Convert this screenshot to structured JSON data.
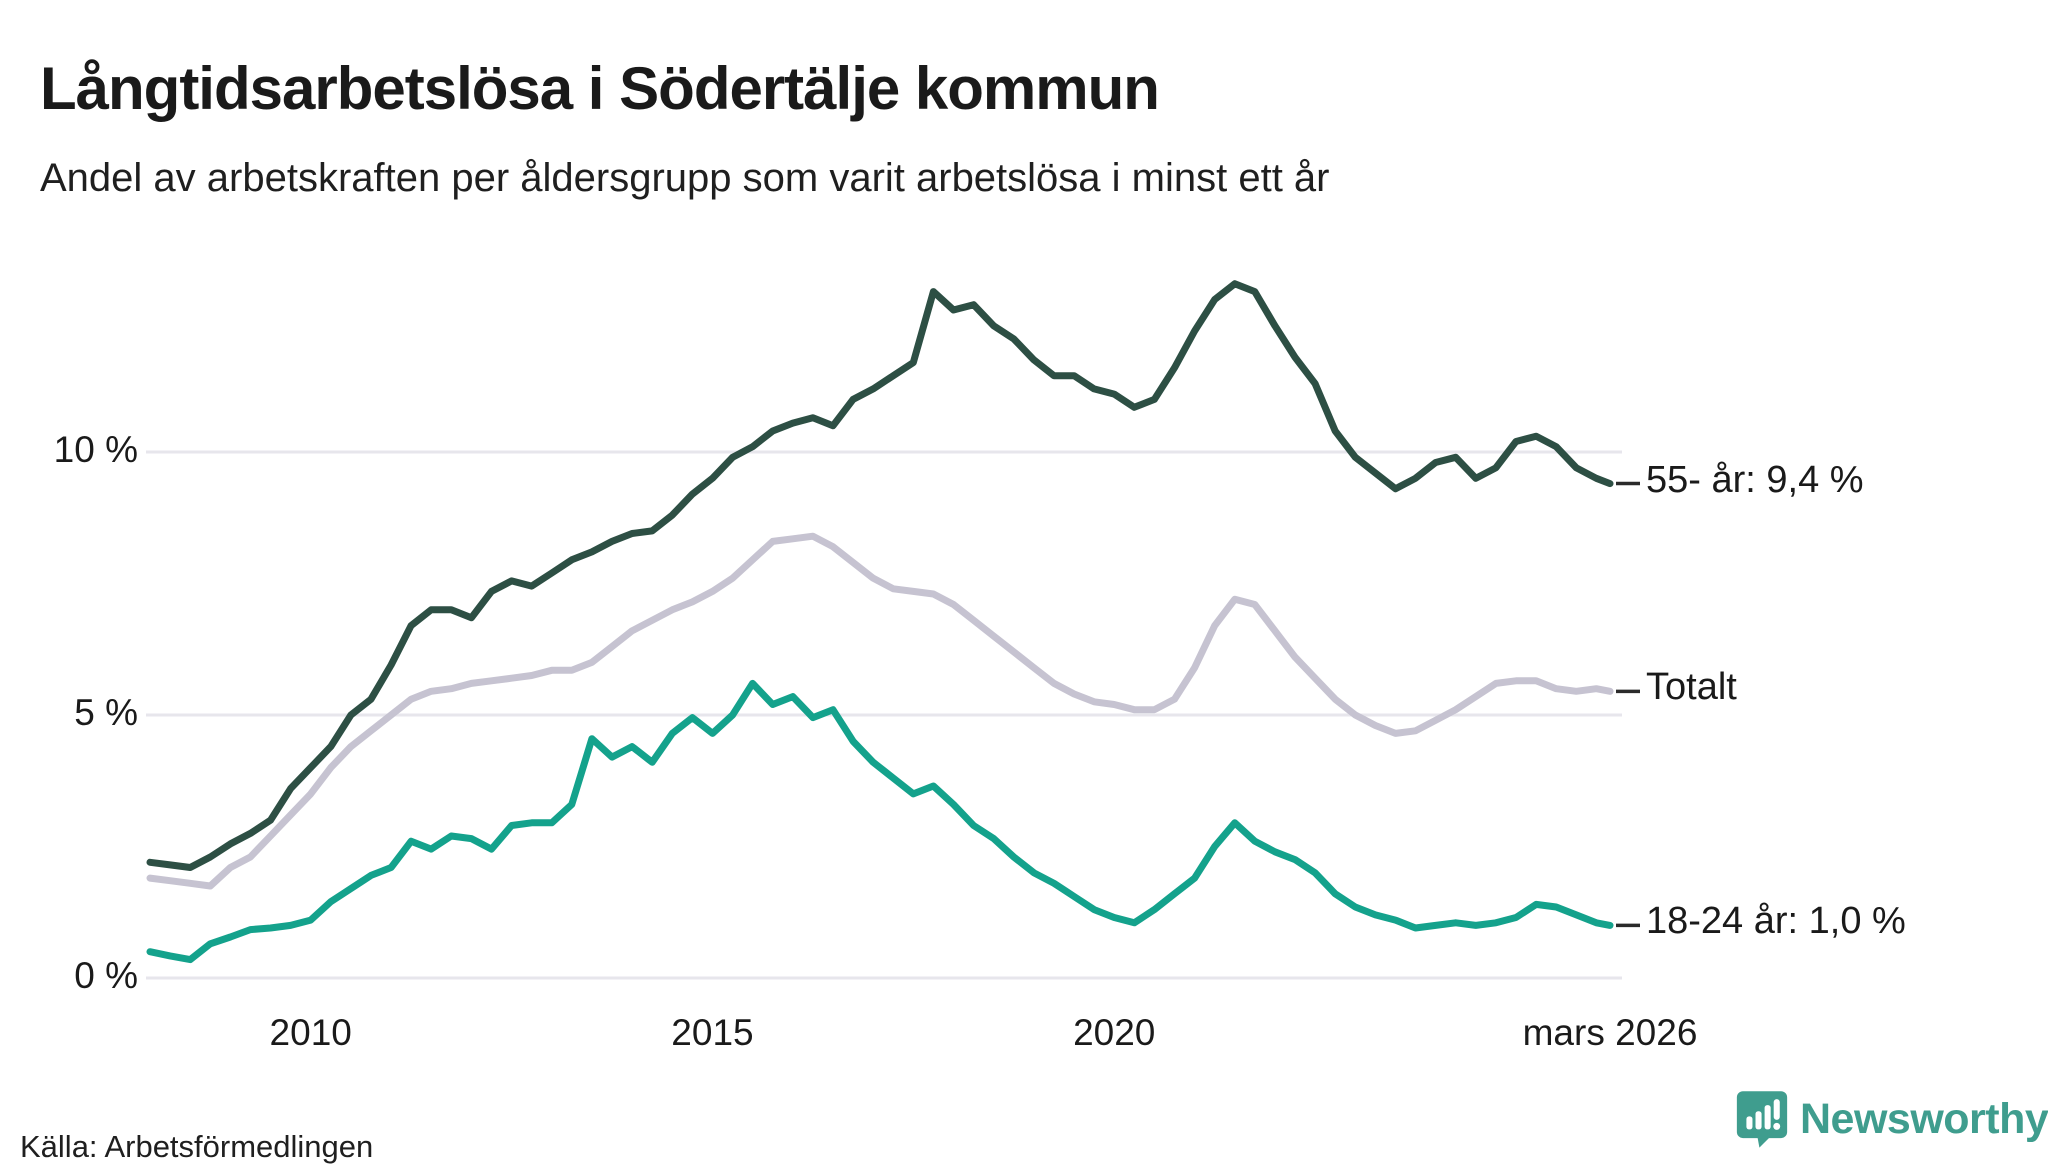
{
  "header": {
    "title": "Långtidsarbetslösa i Södertälje kommun",
    "subtitle": "Andel av arbetskraften per åldersgrupp som varit arbetslösa i minst ett år"
  },
  "footer": {
    "source": "Källa: Arbetsförmedlingen",
    "brand": "Newsworthy"
  },
  "colors": {
    "text": "#1a1a1a",
    "grid": "#e7e6ec",
    "label_dash": "#2b2b2b",
    "series_55": "#2d4f44",
    "series_total": "#c6c3d1",
    "series_1824": "#14a28c",
    "brand_teal": "#3f9d8e"
  },
  "chart_data": {
    "type": "line",
    "title": "Långtidsarbetslösa i Södertälje kommun",
    "subtitle": "Andel av arbetskraften per åldersgrupp som varit arbetslösa i minst ett år",
    "unit": "% av arbetskraften",
    "grid": "horizontal",
    "legend_position": "right-end-labels",
    "xlim": [
      2008,
      2026.25
    ],
    "ylim": [
      0,
      14
    ],
    "x_ticks": [
      {
        "x": 2010,
        "label": "2010"
      },
      {
        "x": 2015,
        "label": "2015"
      },
      {
        "x": 2020,
        "label": "2020"
      },
      {
        "x": 2026.17,
        "label": "mars 2026"
      }
    ],
    "y_ticks": [
      {
        "value": 0,
        "label": "0 %"
      },
      {
        "value": 5,
        "label": "5 %"
      },
      {
        "value": 10,
        "label": "10 %"
      }
    ],
    "x": [
      2008,
      2008.25,
      2008.5,
      2008.75,
      2009,
      2009.25,
      2009.5,
      2009.75,
      2010,
      2010.25,
      2010.5,
      2010.75,
      2011,
      2011.25,
      2011.5,
      2011.75,
      2012,
      2012.25,
      2012.5,
      2012.75,
      2013,
      2013.25,
      2013.5,
      2013.75,
      2014,
      2014.25,
      2014.5,
      2014.75,
      2015,
      2015.25,
      2015.5,
      2015.75,
      2016,
      2016.25,
      2016.5,
      2016.75,
      2017,
      2017.25,
      2017.5,
      2017.75,
      2018,
      2018.25,
      2018.5,
      2018.75,
      2019,
      2019.25,
      2019.5,
      2019.75,
      2020,
      2020.25,
      2020.5,
      2020.75,
      2021,
      2021.25,
      2021.5,
      2021.75,
      2022,
      2022.25,
      2022.5,
      2022.75,
      2023,
      2023.25,
      2023.5,
      2023.75,
      2024,
      2024.25,
      2024.5,
      2024.75,
      2025,
      2025.25,
      2025.5,
      2025.75,
      2026,
      2026.17
    ],
    "series": [
      {
        "name": "55- år",
        "end_label": "55- år: 9,4 %",
        "last_value_text": "9,4 %",
        "color": "#2d4f44",
        "values": [
          2.2,
          2.15,
          2.1,
          2.3,
          2.55,
          2.75,
          3.0,
          3.6,
          4.0,
          4.4,
          5.0,
          5.3,
          5.95,
          6.7,
          7.0,
          7.0,
          6.85,
          7.35,
          7.55,
          7.45,
          7.7,
          7.95,
          8.1,
          8.3,
          8.45,
          8.5,
          8.8,
          9.2,
          9.5,
          9.9,
          10.1,
          10.4,
          10.55,
          10.65,
          10.5,
          11.0,
          11.2,
          11.45,
          11.7,
          13.05,
          12.7,
          12.8,
          12.4,
          12.15,
          11.75,
          11.45,
          11.45,
          11.2,
          11.1,
          10.85,
          11.0,
          11.6,
          12.3,
          12.9,
          13.2,
          13.05,
          12.4,
          11.8,
          11.3,
          10.4,
          9.9,
          9.6,
          9.3,
          9.5,
          9.8,
          9.9,
          9.5,
          9.7,
          10.2,
          10.3,
          10.1,
          9.7,
          9.5,
          9.4
        ]
      },
      {
        "name": "Totalt",
        "end_label": "Totalt",
        "last_value_text": "5,4 %",
        "color": "#c6c3d1",
        "values": [
          1.9,
          1.85,
          1.8,
          1.75,
          2.1,
          2.3,
          2.7,
          3.1,
          3.5,
          4.0,
          4.4,
          4.7,
          5.0,
          5.3,
          5.45,
          5.5,
          5.6,
          5.65,
          5.7,
          5.75,
          5.85,
          5.85,
          6.0,
          6.3,
          6.6,
          6.8,
          7.0,
          7.15,
          7.35,
          7.6,
          7.95,
          8.3,
          8.35,
          8.4,
          8.2,
          7.9,
          7.6,
          7.4,
          7.35,
          7.3,
          7.1,
          6.8,
          6.5,
          6.2,
          5.9,
          5.6,
          5.4,
          5.25,
          5.2,
          5.1,
          5.1,
          5.3,
          5.9,
          6.7,
          7.2,
          7.1,
          6.6,
          6.1,
          5.7,
          5.3,
          5.0,
          4.8,
          4.65,
          4.7,
          4.9,
          5.1,
          5.35,
          5.6,
          5.65,
          5.65,
          5.5,
          5.45,
          5.5,
          5.45
        ]
      },
      {
        "name": "18-24 år",
        "end_label": "18-24 år: 1,0 %",
        "last_value_text": "1,0 %",
        "color": "#14a28c",
        "values": [
          0.5,
          0.42,
          0.35,
          0.65,
          0.78,
          0.92,
          0.95,
          1.0,
          1.1,
          1.45,
          1.7,
          1.95,
          2.1,
          2.6,
          2.45,
          2.7,
          2.65,
          2.45,
          2.9,
          2.95,
          2.95,
          3.3,
          4.55,
          4.2,
          4.4,
          4.1,
          4.65,
          4.95,
          4.65,
          5.0,
          5.6,
          5.2,
          5.35,
          4.95,
          5.1,
          4.5,
          4.1,
          3.8,
          3.5,
          3.65,
          3.3,
          2.9,
          2.65,
          2.3,
          2.0,
          1.8,
          1.55,
          1.3,
          1.15,
          1.05,
          1.3,
          1.6,
          1.9,
          2.5,
          2.95,
          2.6,
          2.4,
          2.25,
          2.0,
          1.6,
          1.35,
          1.2,
          1.1,
          0.95,
          1.0,
          1.05,
          1.0,
          1.05,
          1.15,
          1.4,
          1.35,
          1.2,
          1.05,
          1.0
        ]
      }
    ]
  }
}
